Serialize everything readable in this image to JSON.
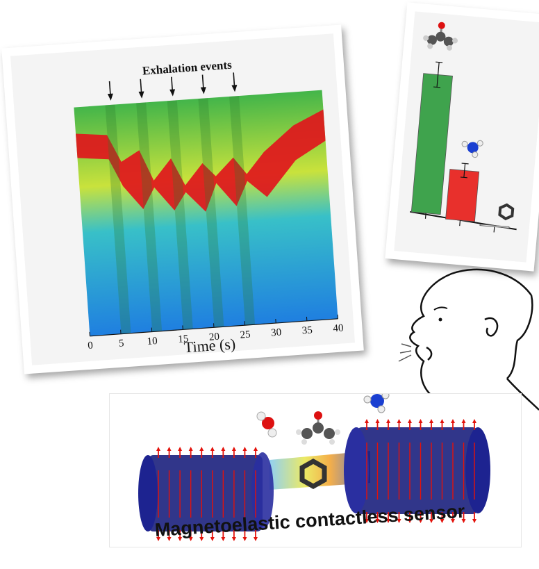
{
  "heatmap": {
    "annotation": "Exhalation events",
    "x_axis_title": "Time (s)",
    "x_ticks": [
      "0",
      "5",
      "10",
      "15",
      "20",
      "25",
      "30",
      "35",
      "40"
    ],
    "event_count": 5
  },
  "bar_chart": {
    "chart_data": {
      "type": "bar",
      "categories": [
        "acetone",
        "ammonia",
        "benzene"
      ],
      "values": [
        1.0,
        0.36,
        0.01
      ],
      "errors": [
        0.09,
        0.05,
        0.0
      ],
      "colors": [
        "#3fa34d",
        "#e8302c",
        "#dddddd"
      ]
    }
  },
  "sensor": {
    "caption": "Magnetoelastic contactless sensor"
  },
  "colors": {
    "heat_low": "#1f7fe0",
    "heat_mid": "#d8e63a",
    "heat_high": "#e0161c",
    "coil": "#151a7a",
    "arrow": "#e3120b"
  }
}
